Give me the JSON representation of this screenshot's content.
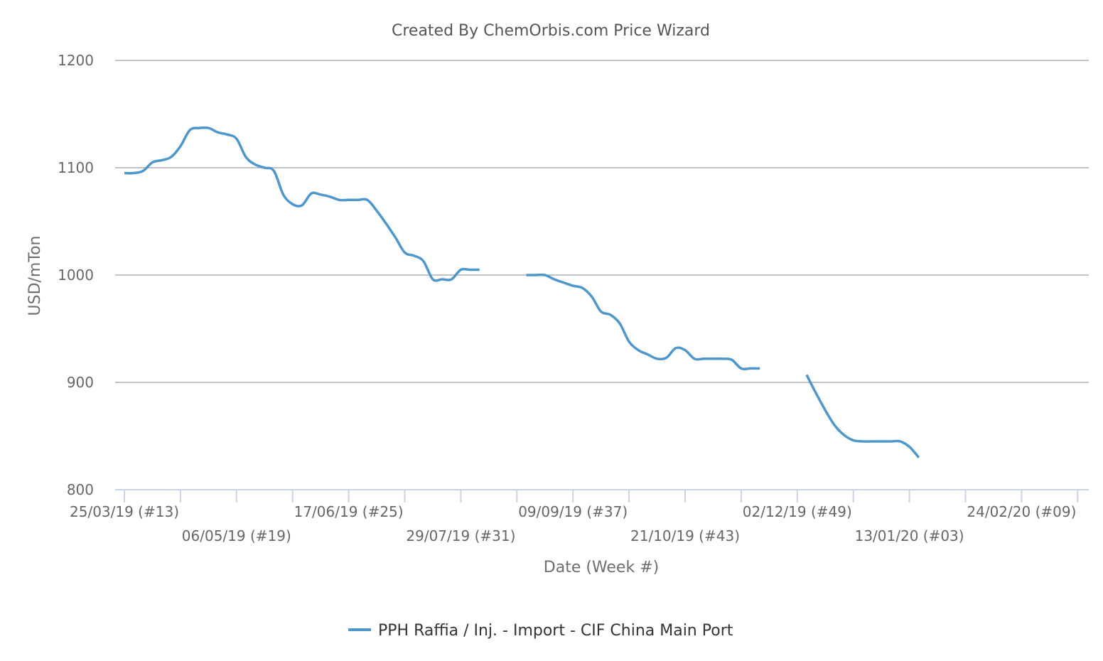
{
  "chart_data": {
    "type": "line",
    "title": "Created By ChemOrbis.com Price Wizard",
    "xlabel": "Date (Week #)",
    "ylabel": "USD/mTon",
    "ylim": [
      800,
      1200
    ],
    "yticks": [
      800,
      900,
      1000,
      1100,
      1200
    ],
    "grid": true,
    "legend_position": "bottom-center",
    "x_start_week": "25/03/19 (#13)",
    "xtick_labels": [
      "25/03/19 (#13)",
      "06/05/19 (#19)",
      "17/06/19 (#25)",
      "29/07/19 (#31)",
      "09/09/19 (#37)",
      "21/10/19 (#43)",
      "02/12/19 (#49)",
      "13/01/20 (#03)",
      "24/02/20 (#09)"
    ],
    "series": [
      {
        "name": "PPH Raffia / Inj. - Import - CIF China Main Port",
        "color": "#4e97cd",
        "segments": [
          [
            [
              0,
              1095
            ],
            [
              0.5,
              1095
            ],
            [
              1,
              1097
            ],
            [
              1.5,
              1105
            ],
            [
              2,
              1107
            ],
            [
              2.5,
              1110
            ],
            [
              3,
              1120
            ],
            [
              3.5,
              1135
            ],
            [
              4,
              1137
            ],
            [
              4.5,
              1137
            ],
            [
              5,
              1133
            ],
            [
              5.5,
              1131
            ],
            [
              6,
              1127
            ],
            [
              6.5,
              1110
            ],
            [
              7,
              1103
            ],
            [
              7.5,
              1100
            ],
            [
              8,
              1097
            ],
            [
              8.5,
              1075
            ],
            [
              9,
              1066
            ],
            [
              9.5,
              1065
            ],
            [
              10,
              1076
            ],
            [
              10.5,
              1075
            ],
            [
              11,
              1073
            ],
            [
              11.5,
              1070
            ],
            [
              12,
              1070
            ],
            [
              12.5,
              1070
            ],
            [
              13,
              1070
            ],
            [
              13.5,
              1060
            ],
            [
              14,
              1048
            ],
            [
              14.5,
              1035
            ],
            [
              15,
              1021
            ],
            [
              15.5,
              1018
            ],
            [
              16,
              1013
            ],
            [
              16.5,
              996
            ],
            [
              17,
              996
            ],
            [
              17.5,
              996
            ],
            [
              18,
              1005
            ],
            [
              18.5,
              1005
            ],
            [
              19,
              1005
            ]
          ],
          [
            [
              21.5,
              1000
            ],
            [
              22,
              1000
            ],
            [
              22.5,
              1000
            ],
            [
              23,
              996
            ],
            [
              23.5,
              993
            ],
            [
              24,
              990
            ],
            [
              24.5,
              988
            ],
            [
              25,
              980
            ],
            [
              25.5,
              966
            ],
            [
              26,
              963
            ],
            [
              26.5,
              955
            ],
            [
              27,
              938
            ],
            [
              27.5,
              930
            ],
            [
              28,
              926
            ],
            [
              28.5,
              922
            ],
            [
              29,
              923
            ],
            [
              29.5,
              932
            ],
            [
              30,
              930
            ],
            [
              30.5,
              922
            ],
            [
              31,
              922
            ],
            [
              31.5,
              922
            ],
            [
              32,
              922
            ],
            [
              32.5,
              921
            ],
            [
              33,
              913
            ],
            [
              33.5,
              913
            ],
            [
              34,
              913
            ]
          ],
          [
            [
              36.5,
              907
            ],
            [
              37,
              890
            ],
            [
              37.5,
              874
            ],
            [
              38,
              860
            ],
            [
              38.5,
              851
            ],
            [
              39,
              846
            ],
            [
              39.5,
              845
            ],
            [
              40,
              845
            ],
            [
              40.5,
              845
            ],
            [
              41,
              845
            ],
            [
              41.5,
              845
            ],
            [
              42,
              840
            ],
            [
              42.5,
              830
            ]
          ]
        ]
      }
    ]
  }
}
